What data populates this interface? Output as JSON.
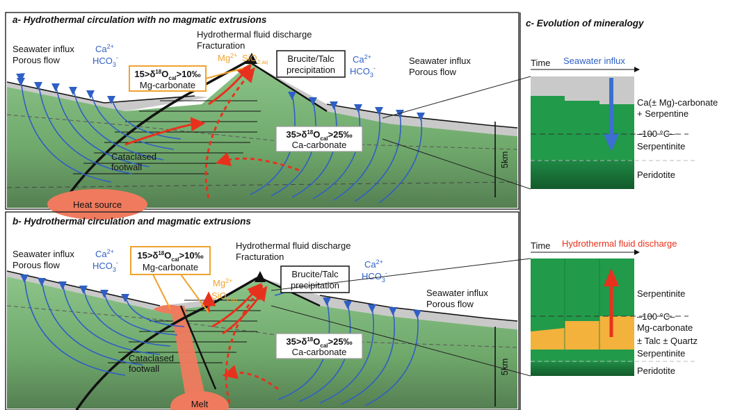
{
  "panel_a": {
    "title": "a- Hydrothermal circulation with no magmatic extrusions",
    "seawater_left": [
      "Seawater influx",
      "Porous flow"
    ],
    "ions_left": {
      "ca": "Ca",
      "ca_sup": "2+",
      "hco": "HCO",
      "hco_sub": "3",
      "hco_sup": "-"
    },
    "discharge": [
      "Hydrothermal fluid discharge",
      "Fracturation"
    ],
    "mg_ion": {
      "base": "Mg",
      "sup": "2+"
    },
    "si_ion": {
      "base": "SiO",
      "sub": "2,aq"
    },
    "brucite": [
      "Brucite/Talc",
      "precipitation"
    ],
    "ions_right": {
      "ca": "Ca",
      "ca_sup": "2+",
      "hco": "HCO",
      "hco_sub": "3",
      "hco_sup": "-"
    },
    "seawater_right": [
      "Seawater influx",
      "Porous flow"
    ],
    "mg_box": {
      "prefix": "15>δ",
      "iso": "18",
      "o": "O",
      "sub": "cal",
      "suffix": ">10‰",
      "name": "Mg-carbonate"
    },
    "ca_box": {
      "prefix": "35>δ",
      "iso": "18",
      "o": "O",
      "sub": "cal",
      "suffix": ">25‰",
      "name": "Ca-carbonate"
    },
    "footwall": [
      "Cataclased",
      "footwall"
    ],
    "heat": "Heat source",
    "scale": "5km"
  },
  "panel_b": {
    "title": "b- Hydrothermal circulation and magmatic extrusions",
    "seawater_left": [
      "Seawater influx",
      "Porous flow"
    ],
    "ions_left": {
      "ca": "Ca",
      "ca_sup": "2+",
      "hco": "HCO",
      "hco_sub": "3",
      "hco_sup": "-"
    },
    "mg_box": {
      "prefix": "15>δ",
      "iso": "18",
      "o": "O",
      "sub": "cal",
      "suffix": ">10‰",
      "name": "Mg-carbonate"
    },
    "discharge": [
      "Hydrothermal fluid discharge",
      "Fracturation"
    ],
    "mg_ion": {
      "base": "Mg",
      "sup": "2+"
    },
    "si_ion": {
      "base": "SiO",
      "sub": "2,aq"
    },
    "brucite": [
      "Brucite/Talc",
      "precipitation"
    ],
    "ions_right": {
      "ca": "Ca",
      "ca_sup": "2+",
      "hco": "HCO",
      "hco_sub": "3",
      "hco_sup": "-"
    },
    "seawater_right": [
      "Seawater influx",
      "Porous flow"
    ],
    "ca_box": {
      "prefix": "35>δ",
      "iso": "18",
      "o": "O",
      "sub": "cal",
      "suffix": ">25‰",
      "name": "Ca-carbonate"
    },
    "footwall": [
      "Cataclased",
      "footwall"
    ],
    "melt": "Melt",
    "scale": "5km"
  },
  "panel_c": {
    "title": "c- Evolution of mineralogy",
    "top": {
      "time": "Time",
      "flow": "Seawater influx",
      "labels": [
        "Ca(± Mg)-carbonate",
        "+ Serpentine",
        "–100 °C–",
        "Serpentinite",
        "Peridotite"
      ]
    },
    "bottom": {
      "time": "Time",
      "flow": "Hydrothermal fluid discharge",
      "labels": [
        "Serpentinite",
        "–100 °C–",
        "Mg-carbonate",
        "± Talc ± Quartz",
        "Serpentinite",
        "Peridotite"
      ]
    }
  },
  "colors": {
    "green": "#6fa86b",
    "dark_green": "#1f7a3e",
    "grey": "#c9c9c9",
    "blue": "#2f5fc4",
    "red": "#e8311d",
    "orange": "#f0a22e",
    "heat": "#f07a5e"
  }
}
